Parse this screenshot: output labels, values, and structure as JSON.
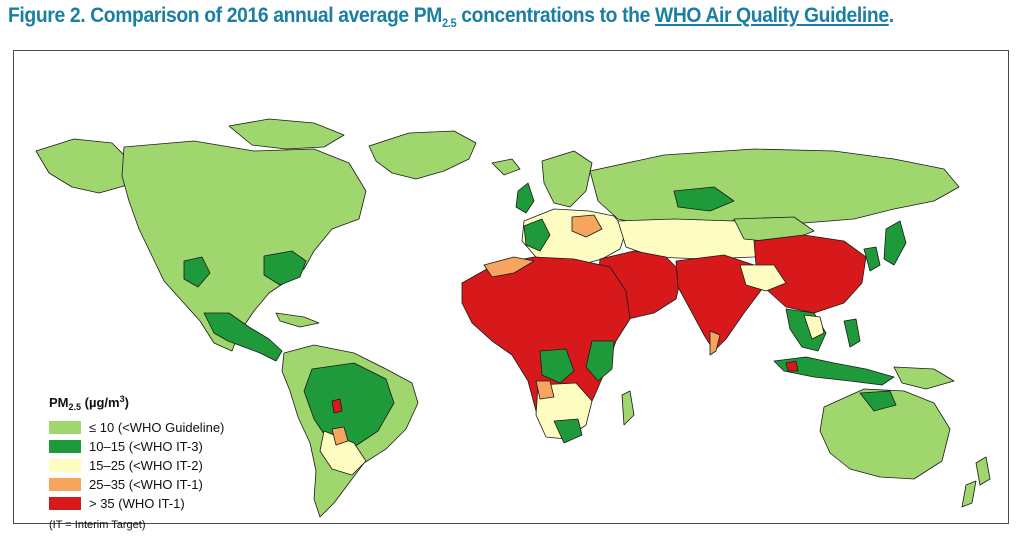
{
  "title": {
    "prefix": "Figure 2. Comparison of 2016 annual average PM",
    "subscript": "2.5",
    "middle": " concentrations to the ",
    "link": "WHO Air Quality Guideline",
    "suffix": "."
  },
  "legend": {
    "title_prefix": "PM",
    "title_subscript": "2.5",
    "title_units": " (µg/m",
    "title_units_sup": "3",
    "title_units_close": ")",
    "items": [
      {
        "label": "≤ 10 (<WHO Guideline)",
        "color": "#9fd66d"
      },
      {
        "label": "10–15 (<WHO IT-3)",
        "color": "#1f9a3b"
      },
      {
        "label": "15–25 (<WHO IT-2)",
        "color": "#fdfdc2"
      },
      {
        "label": "25–35 (<WHO IT-1)",
        "color": "#f7a55e"
      },
      {
        "label": "> 35 (WHO IT-1)",
        "color": "#d7191c"
      }
    ],
    "footnote": "(IT = Interim Target)"
  },
  "colors": {
    "title": "#1b7fa3",
    "border": "#1a1a1a",
    "frame": "#4a4a4a"
  }
}
